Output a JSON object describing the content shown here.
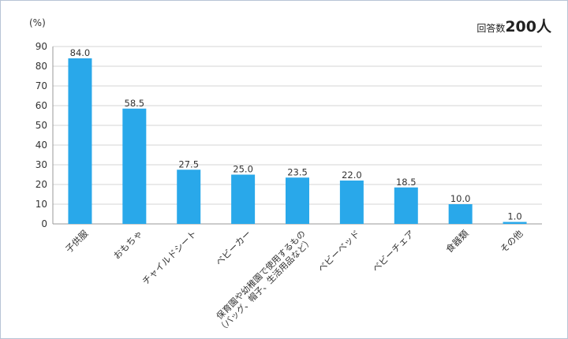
{
  "unit_label": "(%)",
  "respondents": {
    "label": "回答数",
    "value": "200人"
  },
  "chart_data": {
    "type": "bar",
    "title": "",
    "xlabel": "",
    "ylabel": "(%)",
    "ylim": [
      0,
      90
    ],
    "yticks": [
      0,
      10,
      20,
      30,
      40,
      50,
      60,
      70,
      80,
      90
    ],
    "grid": true,
    "bar_color": "#29a8ea",
    "categories": [
      [
        "子供服"
      ],
      [
        "おもちゃ"
      ],
      [
        "チャイルドシート"
      ],
      [
        "ベビーカー"
      ],
      [
        "保育園や幼稚園で使用するもの",
        "（バッグ、帽子、生活用品など）"
      ],
      [
        "ベビーベッド"
      ],
      [
        "ベビーチェア"
      ],
      [
        "食器類"
      ],
      [
        "その他"
      ]
    ],
    "values": [
      84.0,
      58.5,
      27.5,
      25.0,
      23.5,
      22.0,
      18.5,
      10.0,
      1.0
    ]
  }
}
